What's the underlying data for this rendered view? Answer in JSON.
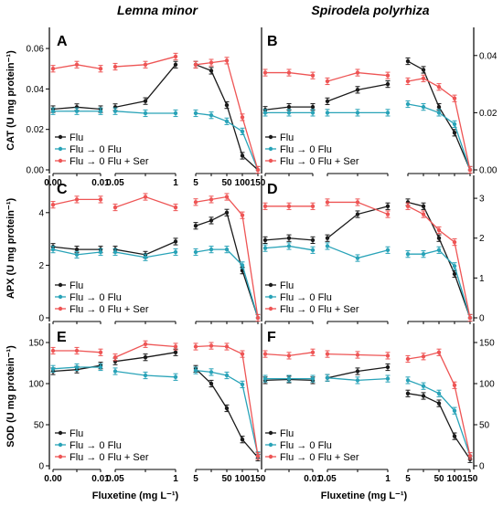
{
  "figure": {
    "title_left": "Lemna minor",
    "title_right": "Spirodela polyrhiza",
    "xlabel": "Fluxetine (mg L⁻¹)",
    "colors": {
      "flu": "#1a1a1a",
      "flu0": "#29a3b8",
      "ser": "#ee5555"
    },
    "legend": {
      "flu": "Flu",
      "flu0": "Flu →  0 Flu",
      "ser": "Flu →  0 Flu + Ser"
    }
  },
  "chart_data": [
    {
      "panel": "A",
      "species": "Lemna minor",
      "type": "line",
      "ylabel": "CAT (U mg protein⁻¹)",
      "ylim": [
        0,
        0.065
      ],
      "yticks": [
        0.0,
        0.02,
        0.04,
        0.06
      ],
      "ytick_labels": [
        "0.00",
        "0.02",
        "0.04",
        "0.06"
      ],
      "yaxis_side": "left",
      "segments": [
        {
          "x": [
            0.0,
            0.005,
            0.01
          ],
          "xtick_labels": [
            "0.00",
            "",
            "0.01"
          ],
          "series": [
            {
              "name": "Flu",
              "values": [
                0.03,
                0.031,
                0.03
              ]
            },
            {
              "name": "Flu →  0 Flu",
              "values": [
                0.029,
                0.029,
                0.029
              ]
            },
            {
              "name": "Flu →  0 Flu + Ser",
              "values": [
                0.05,
                0.052,
                0.05
              ]
            }
          ]
        },
        {
          "x": [
            0.05,
            0.5,
            1
          ],
          "xtick_labels": [
            "0.05",
            "",
            "1"
          ],
          "series": [
            {
              "name": "Flu",
              "values": [
                0.031,
                0.034,
                0.052
              ]
            },
            {
              "name": "Flu →  0 Flu",
              "values": [
                0.029,
                0.028,
                0.028
              ]
            },
            {
              "name": "Flu →  0 Flu + Ser",
              "values": [
                0.051,
                0.052,
                0.056
              ]
            }
          ]
        },
        {
          "x": [
            5,
            10,
            50,
            100,
            150
          ],
          "xtick_labels": [
            "5",
            "",
            "50",
            "100",
            "150"
          ],
          "series": [
            {
              "name": "Flu",
              "values": [
                0.052,
                0.049,
                0.032,
                0.007,
                0.0
              ]
            },
            {
              "name": "Flu →  0 Flu",
              "values": [
                0.028,
                0.027,
                0.024,
                0.019,
                0.0
              ]
            },
            {
              "name": "Flu →  0 Flu + Ser",
              "values": [
                0.052,
                0.053,
                0.054,
                0.026,
                0.0
              ]
            }
          ]
        }
      ]
    },
    {
      "panel": "B",
      "species": "Spirodela polyrhiza",
      "type": "line",
      "ylabel": "",
      "ylim": [
        0,
        0.046
      ],
      "yticks": [
        0.0,
        0.02,
        0.04
      ],
      "ytick_labels": [
        "0.00",
        "0.02",
        "0.04"
      ],
      "yaxis_side": "right",
      "segments": [
        {
          "x": [
            0.0,
            0.005,
            0.01
          ],
          "xtick_labels": [
            "",
            "",
            ""
          ],
          "series": [
            {
              "name": "Flu",
              "values": [
                0.021,
                0.022,
                0.022
              ]
            },
            {
              "name": "Flu →  0 Flu",
              "values": [
                0.02,
                0.02,
                0.02
              ]
            },
            {
              "name": "Flu →  0 Flu + Ser",
              "values": [
                0.034,
                0.034,
                0.033
              ]
            }
          ]
        },
        {
          "x": [
            0.05,
            0.5,
            1
          ],
          "xtick_labels": [
            "",
            "",
            ""
          ],
          "series": [
            {
              "name": "Flu",
              "values": [
                0.024,
                0.028,
                0.03
              ]
            },
            {
              "name": "Flu →  0 Flu",
              "values": [
                0.02,
                0.02,
                0.02
              ]
            },
            {
              "name": "Flu →  0 Flu + Ser",
              "values": [
                0.031,
                0.034,
                0.033
              ]
            }
          ]
        },
        {
          "x": [
            5,
            10,
            50,
            100,
            150
          ],
          "xtick_labels": [
            "",
            "",
            "",
            "",
            ""
          ],
          "series": [
            {
              "name": "Flu",
              "values": [
                0.038,
                0.035,
                0.022,
                0.013,
                0.0
              ]
            },
            {
              "name": "Flu →  0 Flu",
              "values": [
                0.023,
                0.022,
                0.02,
                0.016,
                0.0
              ]
            },
            {
              "name": "Flu →  0 Flu + Ser",
              "values": [
                0.031,
                0.032,
                0.029,
                0.025,
                0.0
              ]
            }
          ]
        }
      ]
    },
    {
      "panel": "C",
      "species": "Lemna minor",
      "type": "line",
      "ylabel": "APX (U mg protein⁻¹)",
      "ylim": [
        0,
        5
      ],
      "yticks": [
        0,
        2,
        4
      ],
      "ytick_labels": [
        "0",
        "2",
        "4"
      ],
      "yaxis_side": "left",
      "segments": [
        {
          "x": [
            0.0,
            0.005,
            0.01
          ],
          "xtick_labels": [
            "",
            "",
            ""
          ],
          "series": [
            {
              "name": "Flu",
              "values": [
                2.7,
                2.6,
                2.6
              ]
            },
            {
              "name": "Flu →  0 Flu",
              "values": [
                2.6,
                2.4,
                2.5
              ]
            },
            {
              "name": "Flu →  0 Flu + Ser",
              "values": [
                4.3,
                4.5,
                4.5
              ]
            }
          ]
        },
        {
          "x": [
            0.05,
            0.5,
            1
          ],
          "xtick_labels": [
            "",
            "",
            ""
          ],
          "series": [
            {
              "name": "Flu",
              "values": [
                2.6,
                2.4,
                2.9
              ]
            },
            {
              "name": "Flu →  0 Flu",
              "values": [
                2.5,
                2.3,
                2.5
              ]
            },
            {
              "name": "Flu →  0 Flu + Ser",
              "values": [
                4.2,
                4.6,
                4.2
              ]
            }
          ]
        },
        {
          "x": [
            5,
            10,
            50,
            100,
            150
          ],
          "xtick_labels": [
            "",
            "",
            "",
            "",
            ""
          ],
          "series": [
            {
              "name": "Flu",
              "values": [
                3.5,
                3.7,
                4.0,
                1.8,
                0.0
              ]
            },
            {
              "name": "Flu →  0 Flu",
              "values": [
                2.5,
                2.6,
                2.6,
                2.0,
                0.0
              ]
            },
            {
              "name": "Flu →  0 Flu + Ser",
              "values": [
                4.4,
                4.5,
                4.6,
                3.9,
                0.0
              ]
            }
          ]
        }
      ]
    },
    {
      "panel": "D",
      "species": "Spirodela polyrhiza",
      "type": "line",
      "ylabel": "",
      "ylim": [
        0,
        3.3
      ],
      "yticks": [
        0,
        1,
        2,
        3
      ],
      "ytick_labels": [
        "0",
        "1",
        "2",
        "3"
      ],
      "yaxis_side": "right",
      "segments": [
        {
          "x": [
            0.0,
            0.005,
            0.01
          ],
          "xtick_labels": [
            "",
            "",
            ""
          ],
          "series": [
            {
              "name": "Flu",
              "values": [
                1.95,
                2.0,
                1.95
              ]
            },
            {
              "name": "Flu →  0 Flu",
              "values": [
                1.75,
                1.8,
                1.7
              ]
            },
            {
              "name": "Flu →  0 Flu + Ser",
              "values": [
                2.8,
                2.8,
                2.8
              ]
            }
          ]
        },
        {
          "x": [
            0.05,
            0.5,
            1
          ],
          "xtick_labels": [
            "",
            "",
            ""
          ],
          "series": [
            {
              "name": "Flu",
              "values": [
                2.0,
                2.6,
                2.8
              ]
            },
            {
              "name": "Flu →  0 Flu",
              "values": [
                1.8,
                1.5,
                1.7
              ]
            },
            {
              "name": "Flu →  0 Flu + Ser",
              "values": [
                2.9,
                2.9,
                2.6
              ]
            }
          ]
        },
        {
          "x": [
            5,
            10,
            50,
            100,
            150
          ],
          "xtick_labels": [
            "",
            "",
            "",
            "",
            ""
          ],
          "series": [
            {
              "name": "Flu",
              "values": [
                2.9,
                2.8,
                2.0,
                1.1,
                0.0
              ]
            },
            {
              "name": "Flu →  0 Flu",
              "values": [
                1.6,
                1.6,
                1.7,
                1.3,
                0.0
              ]
            },
            {
              "name": "Flu →  0 Flu + Ser",
              "values": [
                2.8,
                2.6,
                2.2,
                1.9,
                0.0
              ]
            }
          ]
        }
      ]
    },
    {
      "panel": "E",
      "species": "Lemna minor",
      "type": "line",
      "ylabel": "SOD (U mg protein⁻¹)",
      "ylim": [
        0,
        160
      ],
      "yticks": [
        0,
        50,
        100,
        150
      ],
      "ytick_labels": [
        "0",
        "50",
        "100",
        "150"
      ],
      "yaxis_side": "left",
      "segments": [
        {
          "x": [
            0.0,
            0.005,
            0.01
          ],
          "xtick_labels": [
            "0.00",
            "",
            "0.01"
          ],
          "series": [
            {
              "name": "Flu",
              "values": [
                115,
                117,
                122
              ]
            },
            {
              "name": "Flu →  0 Flu",
              "values": [
                118,
                120,
                120
              ]
            },
            {
              "name": "Flu →  0 Flu + Ser",
              "values": [
                140,
                140,
                138
              ]
            }
          ]
        },
        {
          "x": [
            0.05,
            0.5,
            1
          ],
          "xtick_labels": [
            "0.05",
            "",
            "1"
          ],
          "series": [
            {
              "name": "Flu",
              "values": [
                127,
                132,
                138
              ]
            },
            {
              "name": "Flu →  0 Flu",
              "values": [
                115,
                110,
                108
              ]
            },
            {
              "name": "Flu →  0 Flu + Ser",
              "values": [
                132,
                148,
                145
              ]
            }
          ]
        },
        {
          "x": [
            5,
            10,
            50,
            100,
            150
          ],
          "xtick_labels": [
            "5",
            "",
            "50",
            "100",
            "150"
          ],
          "series": [
            {
              "name": "Flu",
              "values": [
                118,
                100,
                70,
                32,
                10
              ]
            },
            {
              "name": "Flu →  0 Flu",
              "values": [
                116,
                114,
                110,
                99,
                13
              ]
            },
            {
              "name": "Flu →  0 Flu + Ser",
              "values": [
                145,
                146,
                145,
                136,
                12
              ]
            }
          ]
        }
      ]
    },
    {
      "panel": "F",
      "species": "Spirodela polyrhiza",
      "type": "line",
      "ylabel": "",
      "ylim": [
        0,
        160
      ],
      "yticks": [
        0,
        50,
        100,
        150
      ],
      "ytick_labels": [
        "0",
        "50",
        "100",
        "150"
      ],
      "yaxis_side": "right",
      "segments": [
        {
          "x": [
            0.0,
            0.005,
            0.01
          ],
          "xtick_labels": [
            "",
            "",
            "0.01"
          ],
          "series": [
            {
              "name": "Flu",
              "values": [
                104,
                105,
                104
              ]
            },
            {
              "name": "Flu →  0 Flu",
              "values": [
                106,
                106,
                106
              ]
            },
            {
              "name": "Flu →  0 Flu + Ser",
              "values": [
                136,
                134,
                138
              ]
            }
          ]
        },
        {
          "x": [
            0.05,
            0.5,
            1
          ],
          "xtick_labels": [
            "0.05",
            "",
            "1"
          ],
          "series": [
            {
              "name": "Flu",
              "values": [
                107,
                115,
                120
              ]
            },
            {
              "name": "Flu →  0 Flu",
              "values": [
                107,
                104,
                106
              ]
            },
            {
              "name": "Flu →  0 Flu + Ser",
              "values": [
                136,
                135,
                134
              ]
            }
          ]
        },
        {
          "x": [
            5,
            10,
            50,
            100,
            150
          ],
          "xtick_labels": [
            "5",
            "",
            "50",
            "100",
            "150"
          ],
          "series": [
            {
              "name": "Flu",
              "values": [
                88,
                85,
                76,
                36,
                8
              ]
            },
            {
              "name": "Flu →  0 Flu",
              "values": [
                104,
                97,
                88,
                67,
                12
              ]
            },
            {
              "name": "Flu →  0 Flu + Ser",
              "values": [
                130,
                133,
                138,
                98,
                12
              ]
            }
          ]
        }
      ]
    }
  ]
}
